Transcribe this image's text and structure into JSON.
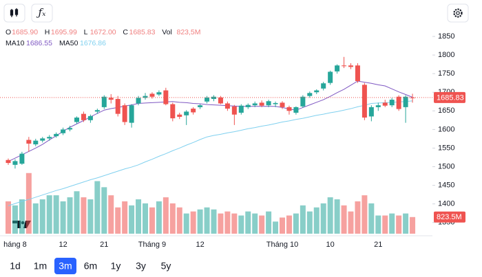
{
  "chart_data": {
    "type": "candlestick",
    "header": [
      {
        "name": "O",
        "value": "1685.90"
      },
      {
        "name": "H",
        "value": "1695.99"
      },
      {
        "name": "L",
        "value": "1672.00"
      },
      {
        "name": "C",
        "value": "1685.83"
      },
      {
        "name": "Vol",
        "value": "823,5M"
      }
    ],
    "categories": [
      null,
      "háng 8",
      null,
      null,
      null,
      null,
      null,
      null,
      "12",
      null,
      null,
      null,
      null,
      null,
      "21",
      null,
      null,
      null,
      null,
      null,
      null,
      "Tháng 9",
      null,
      null,
      null,
      null,
      null,
      null,
      "12",
      null,
      null,
      null,
      null,
      null,
      null,
      null,
      null,
      null,
      null,
      null,
      "Tháng 10",
      null,
      null,
      null,
      null,
      null,
      null,
      "10",
      null,
      null,
      null,
      null,
      null,
      null,
      "21",
      null,
      null,
      null,
      null,
      null
    ],
    "open": [
      1518,
      1505,
      1508,
      1572,
      1560,
      1570,
      1576,
      1582,
      1590,
      1600,
      1620,
      1642,
      1625,
      1648,
      1660,
      1685,
      1682,
      1665,
      1618,
      1670,
      1685,
      1696,
      1694,
      1705,
      1668,
      1640,
      1638,
      1656,
      1660,
      1675,
      1682,
      1686,
      1670,
      1662,
      1645,
      1660,
      1665,
      1672,
      1665,
      1668,
      1672,
      1660,
      1645,
      1662,
      1690,
      1700,
      1710,
      1725,
      1756,
      1772,
      1772,
      1772,
      1720,
      1635,
      1660,
      1672,
      1665,
      1688,
      1660,
      1685.9
    ],
    "high": [
      1522,
      1520,
      1540,
      1580,
      1575,
      1580,
      1585,
      1592,
      1605,
      1610,
      1635,
      1648,
      1640,
      1656,
      1692,
      1695,
      1690,
      1670,
      1668,
      1690,
      1698,
      1700,
      1705,
      1712,
      1672,
      1645,
      1652,
      1660,
      1668,
      1690,
      1692,
      1690,
      1675,
      1666,
      1668,
      1670,
      1675,
      1678,
      1680,
      1675,
      1676,
      1664,
      1662,
      1692,
      1702,
      1708,
      1728,
      1758,
      1775,
      1795,
      1778,
      1778,
      1725,
      1665,
      1672,
      1680,
      1685,
      1692,
      1692,
      1695.99
    ],
    "low": [
      1505,
      1495,
      1505,
      1540,
      1555,
      1565,
      1570,
      1578,
      1585,
      1595,
      1615,
      1620,
      1618,
      1642,
      1655,
      1670,
      1635,
      1612,
      1605,
      1665,
      1680,
      1683,
      1690,
      1665,
      1622,
      1628,
      1612,
      1640,
      1655,
      1670,
      1676,
      1668,
      1650,
      1612,
      1640,
      1655,
      1660,
      1660,
      1660,
      1660,
      1655,
      1640,
      1640,
      1658,
      1685,
      1695,
      1705,
      1720,
      1750,
      1765,
      1762,
      1725,
      1625,
      1622,
      1650,
      1660,
      1660,
      1650,
      1618,
      1672
    ],
    "close": [
      1510,
      1515,
      1535,
      1562,
      1570,
      1576,
      1580,
      1588,
      1600,
      1604,
      1632,
      1625,
      1636,
      1652,
      1688,
      1680,
      1642,
      1620,
      1665,
      1685,
      1690,
      1688,
      1700,
      1668,
      1630,
      1634,
      1648,
      1646,
      1665,
      1686,
      1688,
      1670,
      1656,
      1640,
      1664,
      1666,
      1670,
      1664,
      1676,
      1671,
      1660,
      1650,
      1660,
      1688,
      1698,
      1705,
      1724,
      1755,
      1772,
      1770,
      1768,
      1730,
      1632,
      1660,
      1665,
      1664,
      1680,
      1655,
      1688,
      1685.83
    ],
    "volume": [
      1600,
      1400,
      1700,
      3000,
      1500,
      1700,
      1900,
      1900,
      1600,
      1800,
      2100,
      1800,
      1700,
      2600,
      2300,
      1900,
      1300,
      1600,
      1400,
      1700,
      1500,
      1300,
      1600,
      1800,
      1500,
      1300,
      1000,
      1100,
      1200,
      1300,
      1200,
      1000,
      1100,
      1000,
      900,
      1100,
      1000,
      900,
      1100,
      600,
      800,
      900,
      1000,
      1400,
      1100,
      1300,
      1500,
      1800,
      1700,
      1400,
      1100,
      1600,
      1900,
      1500,
      900,
      900,
      1000,
      900,
      1000,
      823.5
    ],
    "series": [
      {
        "name": "MA10",
        "color": "#7e57c2",
        "values": [
          1514,
          1523,
          1532,
          1541,
          1550,
          1560,
          1572,
          1583,
          1595,
          1606,
          1615,
          1624,
          1634,
          1643,
          1652,
          1656,
          1659,
          1663,
          1666,
          1670,
          1671,
          1672,
          1673,
          1674,
          1675,
          1673,
          1672,
          1670,
          1669,
          1667,
          1666,
          1665,
          1664,
          1663,
          1662,
          1662,
          1662,
          1662,
          1662,
          1662,
          1659,
          1655,
          1652,
          1659,
          1666,
          1673,
          1680,
          1689,
          1699,
          1708,
          1719,
          1730,
          1727,
          1724,
          1720,
          1717,
          1709,
          1701,
          1694,
          1686.55
        ]
      },
      {
        "name": "MA50",
        "color": "#7fd0ef",
        "values": [
          1395,
          1401,
          1407,
          1412,
          1418,
          1424,
          1430,
          1436,
          1441,
          1447,
          1453,
          1459,
          1465,
          1470,
          1476,
          1482,
          1488,
          1494,
          1499,
          1505,
          1513,
          1520,
          1528,
          1535,
          1543,
          1550,
          1558,
          1565,
          1573,
          1580,
          1584,
          1587,
          1591,
          1594,
          1598,
          1602,
          1605,
          1609,
          1612,
          1616,
          1620,
          1623,
          1627,
          1630,
          1634,
          1638,
          1641,
          1645,
          1648,
          1652,
          1656,
          1661,
          1665,
          1670,
          1671,
          1672,
          1673,
          1674,
          1675,
          1676.86
        ]
      }
    ],
    "last_price": {
      "value": 1685.83,
      "label": "1685.83"
    },
    "last_volume": {
      "value": 823.5,
      "label": "823.5M"
    },
    "up_color": "#26a69a",
    "down_color": "#ef5350",
    "ylim": [
      1320,
      1874
    ],
    "yticks": [
      1350,
      1400,
      1450,
      1500,
      1550,
      1600,
      1650,
      1700,
      1750,
      1800,
      1850
    ],
    "volume_lim": [
      0,
      10200
    ],
    "grid": false,
    "periods": [
      "1d",
      "1m",
      "3m",
      "6m",
      "1y",
      "3y",
      "5y"
    ],
    "selected_period": 2
  }
}
